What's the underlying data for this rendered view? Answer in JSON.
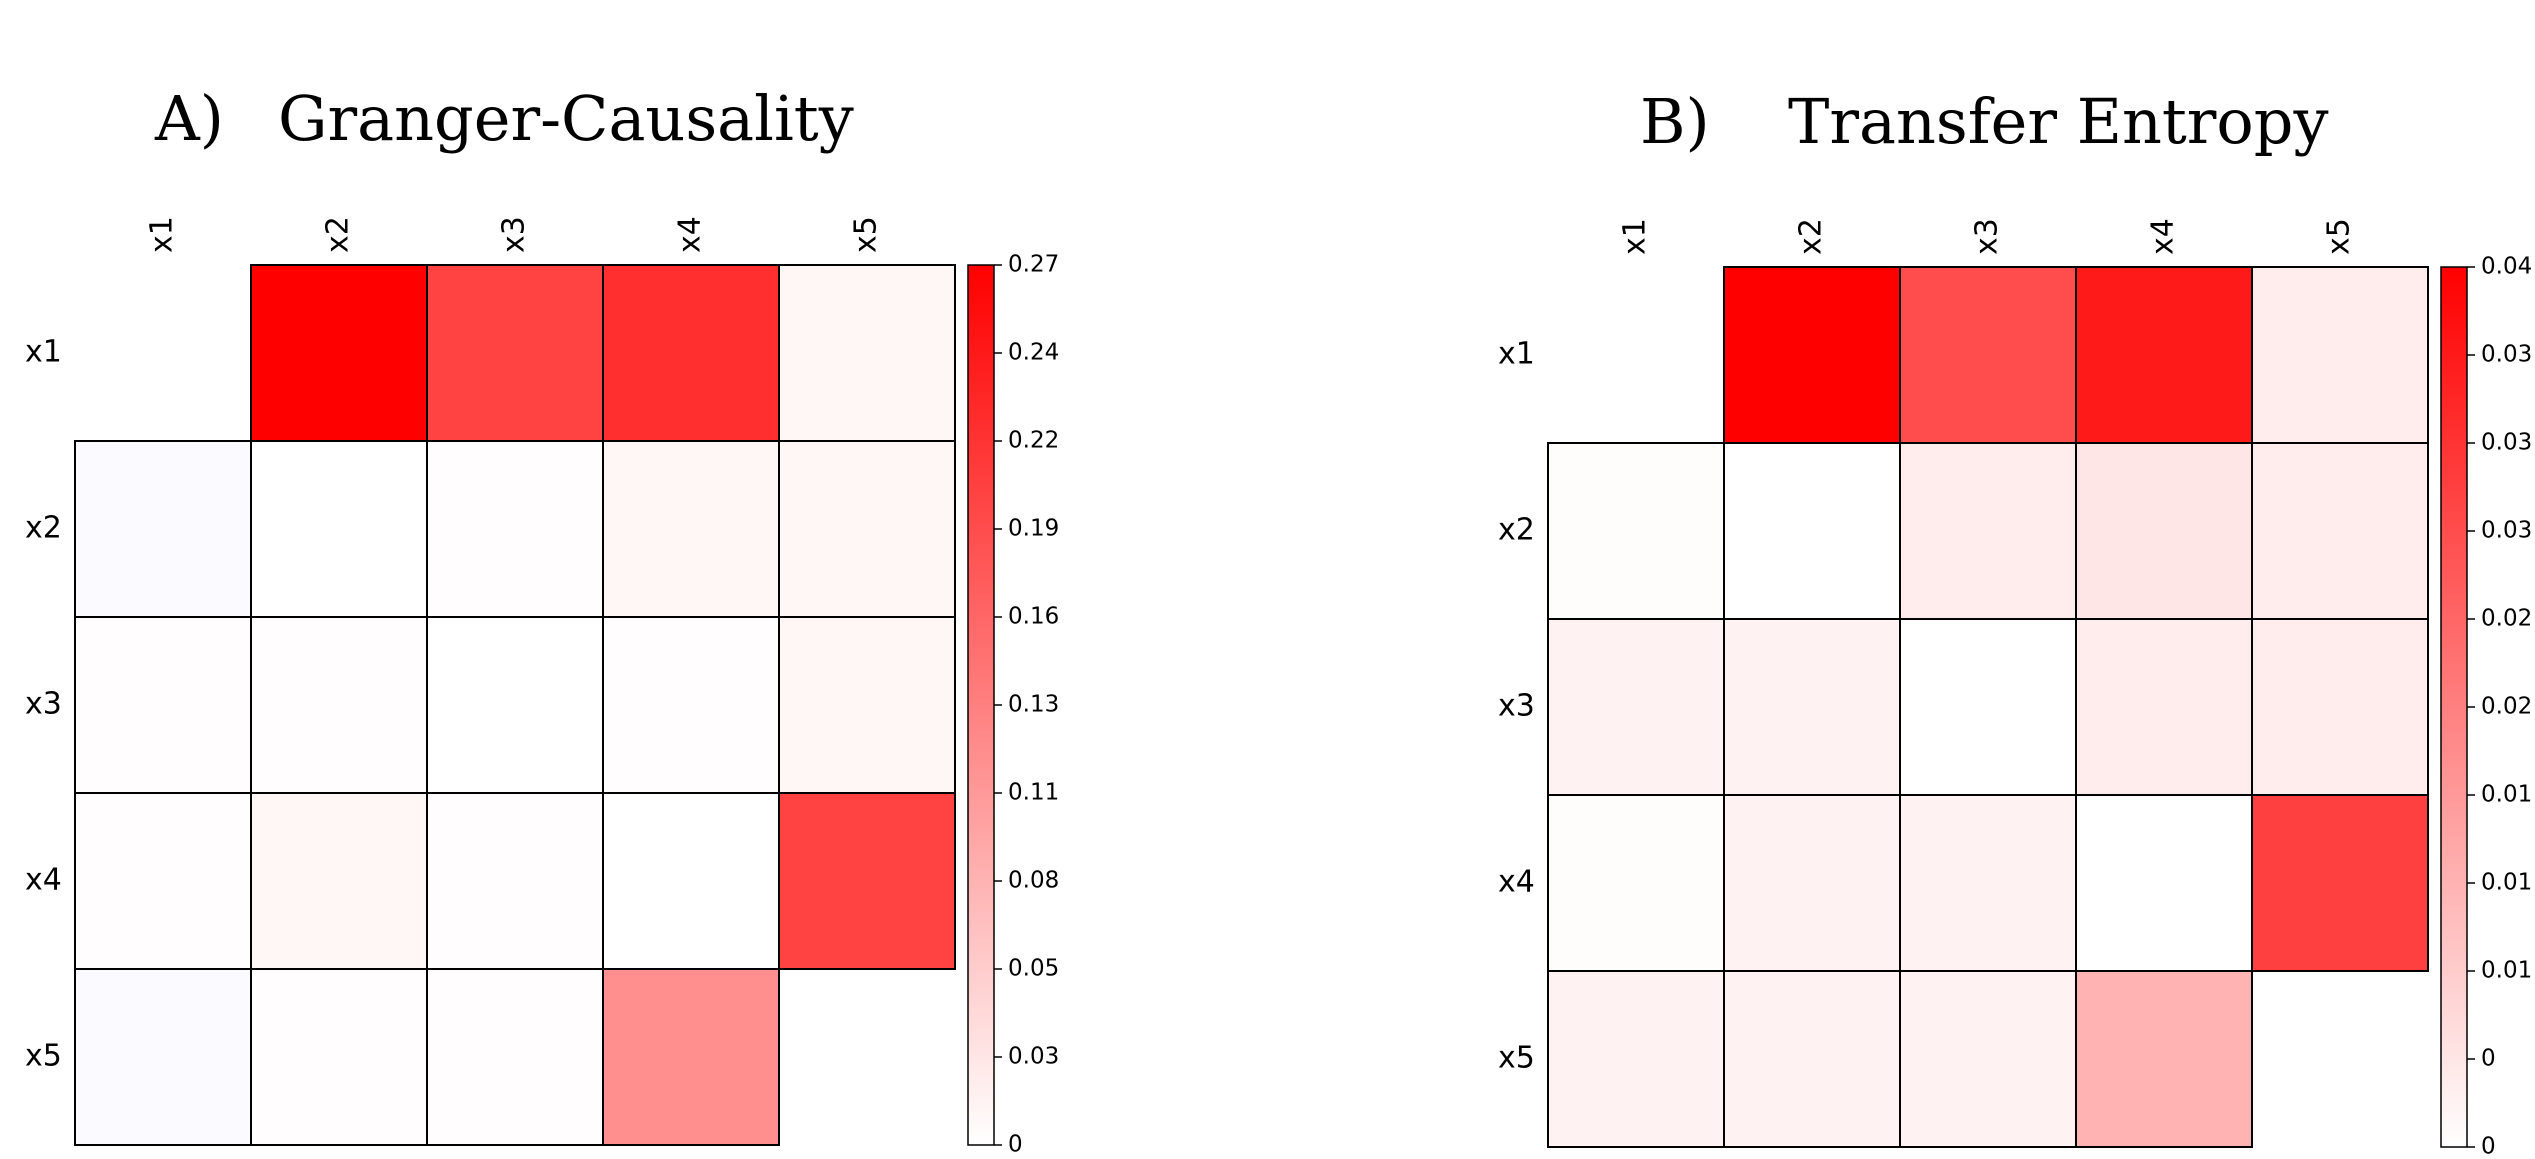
{
  "chart_data": [
    {
      "type": "heatmap",
      "panel_label": "A)",
      "title": "Granger-Causality",
      "rows": [
        "x1",
        "x2",
        "x3",
        "x4",
        "x5"
      ],
      "columns": [
        "x1",
        "x2",
        "x3",
        "x4",
        "x5"
      ],
      "values": [
        [
          null,
          0.27,
          0.2,
          0.22,
          0.01
        ],
        [
          -0.005,
          0.0,
          0.002,
          0.01,
          0.01
        ],
        [
          0.002,
          0.002,
          0.0,
          0.002,
          0.01
        ],
        [
          0.002,
          0.01,
          0.002,
          0.0,
          0.2
        ],
        [
          -0.005,
          0.002,
          0.002,
          0.12,
          null
        ]
      ],
      "color_scale": {
        "low_color": "#ffffff",
        "high_color": "#ff0000",
        "negative_color": "#e9e9ff",
        "min": 0,
        "max": 0.27
      },
      "colorbar_ticks": [
        "0",
        "0.03",
        "0.05",
        "0.08",
        "0.11",
        "0.13",
        "0.16",
        "0.19",
        "0.22",
        "0.24",
        "0.27"
      ]
    },
    {
      "type": "heatmap",
      "panel_label": "B)",
      "title": "Transfer Entropy",
      "rows": [
        "x1",
        "x2",
        "x3",
        "x4",
        "x5"
      ],
      "columns": [
        "x1",
        "x2",
        "x3",
        "x4",
        "x5"
      ],
      "values": [
        [
          null,
          0.04,
          0.028,
          0.036,
          0.003
        ],
        [
          0.0005,
          0.0,
          0.003,
          0.004,
          0.003
        ],
        [
          0.002,
          0.002,
          0.0,
          0.003,
          0.003
        ],
        [
          0.0005,
          0.002,
          0.002,
          0.0,
          0.03
        ],
        [
          0.002,
          0.002,
          0.002,
          0.012,
          null
        ]
      ],
      "color_scale": {
        "low_color": "#ffffff",
        "high_color": "#ff0000",
        "negative_color": "#e9e9ff",
        "min": 0,
        "max": 0.04
      },
      "colorbar_ticks": [
        "0",
        "0",
        "0.01",
        "0.01",
        "0.01",
        "0.02",
        "0.02",
        "0.03",
        "0.03",
        "0.03",
        "0.04"
      ]
    }
  ]
}
